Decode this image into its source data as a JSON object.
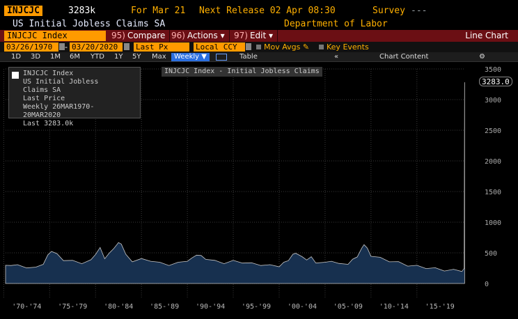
{
  "header": {
    "ticker": "INJCJC",
    "value": "3283k",
    "for_label": "For Mar 21",
    "next_release": "Next Release 02 Apr 08:30",
    "survey_label": "Survey",
    "survey_value": "---",
    "series_name": "US Initial Jobless Claims SA",
    "department": "Department of Labor"
  },
  "toolbar": {
    "index_field": "INJCJC Index",
    "compare_num": "95)",
    "compare_label": "Compare",
    "actions_num": "96)",
    "actions_label": "Actions ▾",
    "edit_num": "97)",
    "edit_label": "Edit ▾",
    "chart_type": "Line Chart"
  },
  "controls": {
    "start_date": "03/26/1970",
    "end_date": "03/20/2020",
    "last_px": "Last Px",
    "currency": "Local CCY",
    "mov_avgs": "Mov Avgs",
    "key_events": "Key Events",
    "dash": "-"
  },
  "ranges": {
    "items": [
      "1D",
      "3D",
      "1M",
      "6M",
      "YTD",
      "1Y",
      "5Y",
      "Max"
    ],
    "frequency": "Weekly ▼",
    "table": "Table",
    "arrows": "«",
    "chart_content": "Chart Content",
    "gear": "⚙"
  },
  "legend": {
    "top_text": "INJCJC Index - Initial Jobless Claims",
    "box_lines": [
      "INJCJC Index",
      "US Initial Jobless Claims SA",
      "Last Price",
      "Weekly 26MAR1970-20MAR2020",
      "Last 3283.0k"
    ]
  },
  "last_value_label": "3283.0",
  "chart_data": {
    "type": "area",
    "title": "",
    "xlabel": "",
    "ylabel": "",
    "color": "#17304f",
    "ylim": [
      0,
      3500
    ],
    "yticks": [
      0,
      500,
      1000,
      1500,
      2000,
      2500,
      3000,
      3500
    ],
    "ytick_labels": [
      "0",
      "500",
      "1000",
      "1500",
      "2000",
      "2500",
      "3000",
      "3500"
    ],
    "xlim": [
      1970.2,
      2020.25
    ],
    "xtick_labels": [
      "'70-'74",
      "'75-'79",
      "'80-'84",
      "'85-'89",
      "'90-'94",
      "'95-'99",
      "'00-'04",
      "'05-'09",
      "'10-'14",
      "'15-'19"
    ],
    "xtick_ranges": [
      [
        1970,
        1975
      ],
      [
        1975,
        1980
      ],
      [
        1980,
        1985
      ],
      [
        1985,
        1990
      ],
      [
        1990,
        1995
      ],
      [
        1995,
        2000
      ],
      [
        2000,
        2005
      ],
      [
        2005,
        2010
      ],
      [
        2010,
        2015
      ],
      [
        2015,
        2020
      ]
    ],
    "series": [
      {
        "x": [
          1970.2,
          1970.8,
          1971.5,
          1972.5,
          1973.5,
          1974.3,
          1974.8,
          1975.2,
          1975.8,
          1976.5,
          1977.5,
          1978.5,
          1979.5,
          1980.0,
          1980.5,
          1981.0,
          1981.5,
          1982.0,
          1982.5,
          1982.8,
          1983.3,
          1984.0,
          1985.0,
          1986.0,
          1987.0,
          1988.0,
          1989.0,
          1990.0,
          1990.5,
          1991.0,
          1991.5,
          1992.0,
          1993.0,
          1994.0,
          1995.0,
          1996.0,
          1997.0,
          1998.0,
          1999.0,
          2000.0,
          2000.5,
          2001.0,
          2001.5,
          2001.8,
          2002.5,
          2003.0,
          2003.5,
          2004.0,
          2005.0,
          2005.7,
          2006.5,
          2007.5,
          2008.0,
          2008.5,
          2009.0,
          2009.25,
          2009.6,
          2010.0,
          2011.0,
          2012.0,
          2013.0,
          2014.0,
          2015.0,
          2016.0,
          2017.0,
          2018.0,
          2019.0,
          2019.9,
          2020.15,
          2020.2
        ],
        "y": [
          280,
          310,
          290,
          270,
          250,
          330,
          450,
          540,
          470,
          390,
          360,
          340,
          370,
          490,
          570,
          420,
          480,
          590,
          650,
          660,
          460,
          370,
          390,
          380,
          330,
          310,
          330,
          380,
          400,
          480,
          440,
          410,
          360,
          340,
          360,
          350,
          320,
          310,
          290,
          290,
          330,
          390,
          460,
          510,
          420,
          400,
          420,
          350,
          330,
          380,
          310,
          330,
          380,
          450,
          560,
          650,
          560,
          460,
          410,
          370,
          340,
          300,
          280,
          260,
          240,
          220,
          215,
          212,
          230,
          3283
        ]
      }
    ]
  }
}
